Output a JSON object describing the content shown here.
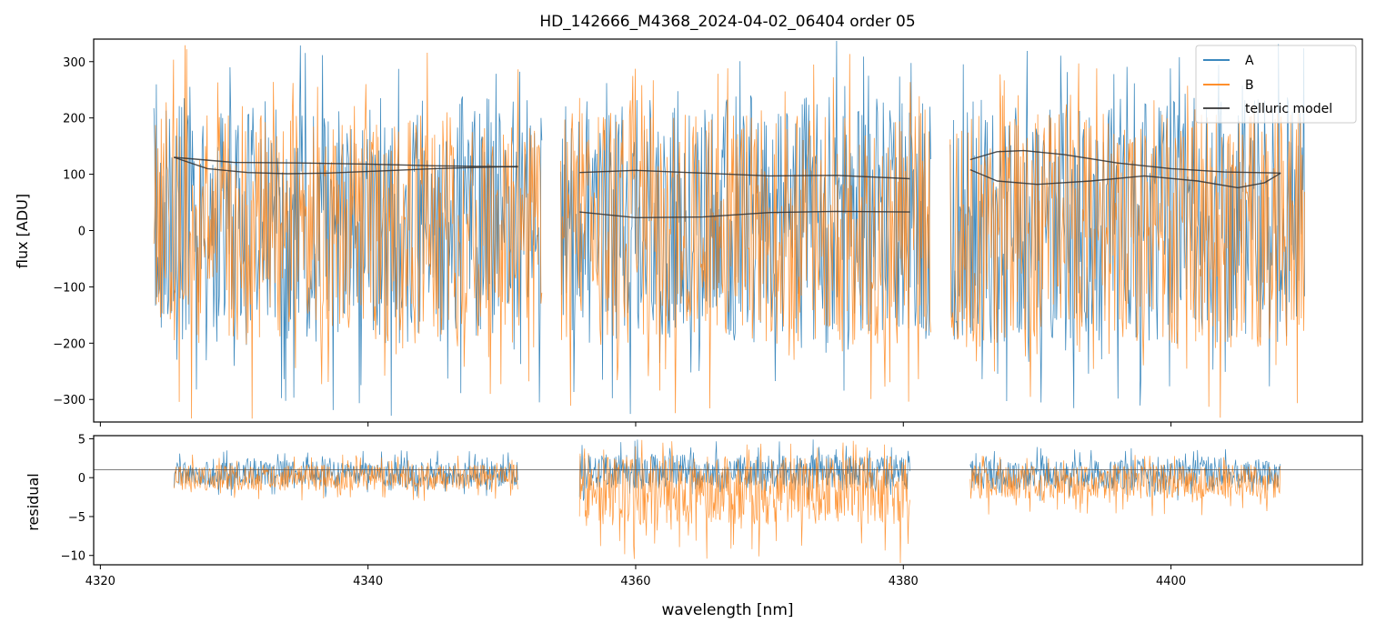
{
  "chart_data": [
    {
      "type": "line",
      "panel": "main",
      "title": "HD_142666_M4368_2024-04-02_06404  order 05",
      "ylabel": "flux [ADU]",
      "xlabel": "",
      "xlim": [
        4319.5,
        4414.3
      ],
      "ylim": [
        -340,
        340
      ],
      "yticks": [
        -300,
        -200,
        -100,
        0,
        100,
        200,
        300
      ],
      "ytick_labels": [
        "−300",
        "−200",
        "−100",
        "0",
        "100",
        "200",
        "300"
      ],
      "xticks": [
        4320,
        4340,
        4360,
        4380,
        4400
      ],
      "grid": false,
      "legend": "top-right",
      "legend_entries": [
        "A",
        "B",
        "telluric model"
      ],
      "colors": {
        "A": "#1f77b4",
        "B": "#ff7f0e",
        "telluric model": "#333333"
      },
      "segments": [
        {
          "x_start": 4324.0,
          "x_end": 4353.0
        },
        {
          "x_start": 4354.4,
          "x_end": 4382.1
        },
        {
          "x_start": 4383.5,
          "x_end": 4410.0
        }
      ],
      "series": [
        {
          "name": "A",
          "style": "noise",
          "envelope": [
            -330,
            340
          ],
          "core": [
            -200,
            240
          ]
        },
        {
          "name": "B",
          "style": "noise",
          "envelope": [
            -340,
            330
          ],
          "core": [
            -210,
            210
          ]
        },
        {
          "name": "telluric model",
          "style": "line",
          "curves": [
            {
              "x": [
                4325.5,
                4328,
                4331,
                4334,
                4337,
                4341,
                4345,
                4348,
                4351.2
              ],
              "y": [
                130,
                110,
                103,
                101,
                102,
                106,
                110,
                112,
                114
              ]
            },
            {
              "x": [
                4325.5,
                4330,
                4335,
                4340,
                4345,
                4351.2
              ],
              "y": [
                130,
                121,
                120,
                118,
                115,
                113
              ]
            },
            {
              "x": [
                4355.8,
                4360,
                4365,
                4370,
                4375,
                4380.5
              ],
              "y": [
                103,
                107,
                102,
                97,
                98,
                92
              ]
            },
            {
              "x": [
                4355.8,
                4360,
                4365,
                4370,
                4375,
                4380.5
              ],
              "y": [
                33,
                23,
                24,
                32,
                34,
                33
              ]
            },
            {
              "x": [
                4385.0,
                4387,
                4389,
                4392,
                4396,
                4400,
                4404,
                4408.2
              ],
              "y": [
                126,
                140,
                142,
                135,
                120,
                110,
                104,
                102
              ]
            },
            {
              "x": [
                4385.0,
                4387,
                4390,
                4394,
                4398,
                4402,
                4405,
                4407,
                4408.2
              ],
              "y": [
                108,
                88,
                82,
                88,
                97,
                88,
                76,
                85,
                102
              ]
            }
          ]
        }
      ]
    },
    {
      "type": "line",
      "panel": "residual",
      "title": "",
      "ylabel": "residual",
      "xlabel": "wavelength [nm]",
      "xlim": [
        4319.5,
        4414.3
      ],
      "ylim": [
        -11.2,
        5.4
      ],
      "yticks": [
        -10,
        -5,
        0,
        5
      ],
      "ytick_labels": [
        "−10",
        "−5",
        "0",
        "5"
      ],
      "xticks": [
        4320,
        4340,
        4360,
        4380,
        4400
      ],
      "xtick_labels": [
        "4320",
        "4340",
        "4360",
        "4380",
        "4400"
      ],
      "reference_line": 1.0,
      "grid": false,
      "segments": [
        {
          "x_start": 4325.5,
          "x_end": 4351.2,
          "A_band": [
            -2.5,
            3.5
          ],
          "B_band": [
            -3.0,
            3.0
          ]
        },
        {
          "x_start": 4355.8,
          "x_end": 4380.5,
          "A_band": [
            -3.0,
            5.0
          ],
          "B_band": [
            -11.0,
            5.0
          ]
        },
        {
          "x_start": 4385.0,
          "x_end": 4408.2,
          "A_band": [
            -3.0,
            4.0
          ],
          "B_band": [
            -5.0,
            3.0
          ]
        }
      ],
      "series": [
        {
          "name": "A",
          "style": "noise"
        },
        {
          "name": "B",
          "style": "noise"
        }
      ]
    }
  ]
}
